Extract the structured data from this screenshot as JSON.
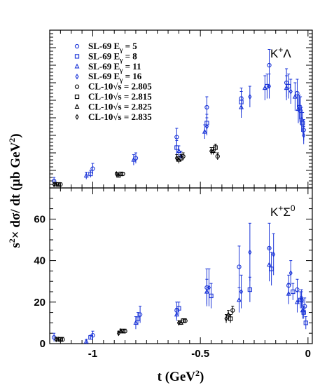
{
  "chart_data": [
    {
      "type": "scatter",
      "panel_label": "K⁺Λ",
      "ylim": [
        0,
        90
      ],
      "y_tick_labels_shown": false,
      "legend": [
        {
          "marker": "circle",
          "color": "#1a34d8",
          "text": "SL-69 E",
          "sub": "γ",
          "rest": " = 5"
        },
        {
          "marker": "square",
          "color": "#1a34d8",
          "text": "SL-69 E",
          "sub": "γ",
          "rest": " = 8"
        },
        {
          "marker": "triangle",
          "color": "#1a34d8",
          "text": "SL-69 E",
          "sub": "γ",
          "rest": " = 11"
        },
        {
          "marker": "diamond",
          "color": "#1a34d8",
          "text": "SL-69 E",
          "sub": "γ",
          "rest": " = 16"
        },
        {
          "marker": "circle",
          "color": "#000000",
          "text": "CL-10√s = 2.805"
        },
        {
          "marker": "square",
          "color": "#000000",
          "text": "CL-10√s = 2.815"
        },
        {
          "marker": "triangle",
          "color": "#000000",
          "text": "CL-10√s = 2.825"
        },
        {
          "marker": "diamond",
          "color": "#000000",
          "text": "CL-10√s = 2.835"
        }
      ],
      "series": [
        {
          "name": "SL-69 Eγ = 5",
          "marker": "circle",
          "color": "#1a34d8",
          "points": [
            [
              -1.18,
              4,
              2
            ],
            [
              -1.0,
              11,
              3
            ],
            [
              -0.8,
              17,
              3
            ],
            [
              -0.61,
              29,
              5
            ],
            [
              -0.47,
              46,
              6
            ],
            [
              -0.31,
              51,
              6
            ],
            [
              -0.18,
              70,
              9
            ],
            [
              -0.1,
              60,
              8
            ],
            [
              -0.05,
              54,
              8
            ],
            [
              -0.035,
              44,
              8
            ],
            [
              -0.02,
              33,
              6
            ]
          ]
        },
        {
          "name": "SL-69 Eγ = 8",
          "marker": "square",
          "color": "#1a34d8",
          "points": [
            [
              -1.01,
              8,
              2
            ],
            [
              -0.61,
              23,
              4
            ],
            [
              -0.47,
              37,
              5
            ],
            [
              -0.31,
              49,
              6
            ],
            [
              -0.19,
              58,
              7
            ],
            [
              -0.09,
              58,
              7
            ],
            [
              -0.04,
              46,
              7
            ],
            [
              -0.025,
              37,
              6
            ]
          ]
        },
        {
          "name": "SL-69 Eγ = 11",
          "marker": "triangle",
          "color": "#1a34d8",
          "points": [
            [
              -1.03,
              7,
              2
            ],
            [
              -0.81,
              16,
              3
            ],
            [
              -0.6,
              21,
              3
            ],
            [
              -0.48,
              32,
              4
            ],
            [
              -0.31,
              46,
              6
            ],
            [
              -0.2,
              57,
              7
            ],
            [
              -0.1,
              57,
              7
            ],
            [
              -0.06,
              52,
              8
            ],
            [
              -0.045,
              45,
              8
            ],
            [
              -0.03,
              39,
              7
            ]
          ]
        },
        {
          "name": "SL-69 Eγ = 16",
          "marker": "diamond",
          "color": "#1a34d8",
          "points": [
            [
              -0.59,
              18,
              3
            ],
            [
              -0.47,
              35,
              5
            ],
            [
              -0.27,
              52,
              6
            ],
            [
              -0.18,
              58,
              7
            ],
            [
              -0.08,
              55,
              7
            ],
            [
              -0.02,
              30,
              5
            ]
          ]
        },
        {
          "name": "CL-10√s = 2.805",
          "marker": "circle",
          "color": "#000000",
          "points": [
            [
              -1.15,
              2,
              1
            ],
            [
              -0.86,
              8,
              1
            ],
            [
              -0.58,
              18,
              2
            ],
            [
              -0.42,
              18,
              2
            ]
          ]
        },
        {
          "name": "CL-10√s = 2.815",
          "marker": "square",
          "color": "#000000",
          "points": [
            [
              -1.16,
              2,
              1
            ],
            [
              -0.87,
              8,
              1
            ],
            [
              -0.59,
              17,
              2
            ],
            [
              -0.43,
              23,
              2
            ]
          ]
        },
        {
          "name": "CL-10√s = 2.825",
          "marker": "triangle",
          "color": "#000000",
          "points": [
            [
              -1.17,
              2,
              1
            ],
            [
              -0.88,
              7,
              1
            ],
            [
              -0.6,
              16,
              2
            ],
            [
              -0.44,
              21,
              2
            ]
          ]
        },
        {
          "name": "CL-10√s = 2.835",
          "marker": "diamond",
          "color": "#000000",
          "points": [
            [
              -1.18,
              2,
              1
            ],
            [
              -0.89,
              8,
              1
            ],
            [
              -0.61,
              17,
              2
            ],
            [
              -0.45,
              21,
              2
            ]
          ]
        }
      ]
    },
    {
      "type": "scatter",
      "panel_label": "K⁺Σ⁰",
      "ylim": [
        0,
        75
      ],
      "y_tick_labels": [
        "0",
        "20",
        "40",
        "60"
      ],
      "y_ticks": [
        0,
        20,
        40,
        60
      ],
      "series": [
        {
          "name": "SL-69 Eγ = 5",
          "marker": "circle",
          "color": "#1a34d8",
          "points": [
            [
              -1.18,
              3,
              2
            ],
            [
              -1.0,
              4,
              2
            ],
            [
              -0.78,
              14,
              4
            ],
            [
              -0.61,
              16,
              4
            ],
            [
              -0.47,
              27,
              9
            ],
            [
              -0.32,
              37,
              10
            ],
            [
              -0.18,
              46,
              12
            ],
            [
              -0.09,
              28,
              5
            ],
            [
              -0.05,
              26,
              5
            ],
            [
              -0.03,
              21,
              4
            ],
            [
              -0.015,
              18,
              4
            ]
          ]
        },
        {
          "name": "SL-69 Eγ = 8",
          "marker": "square",
          "color": "#1a34d8",
          "points": [
            [
              -1.01,
              3,
              1
            ],
            [
              -0.79,
              12,
              3
            ],
            [
              -0.6,
              17,
              3
            ],
            [
              -0.45,
              23,
              6
            ],
            [
              -0.27,
              26,
              6
            ],
            [
              -0.17,
              36,
              8
            ],
            [
              -0.07,
              25,
              4
            ],
            [
              -0.035,
              21,
              4
            ],
            [
              -0.02,
              15,
              3
            ],
            [
              -0.01,
              10,
              3
            ]
          ]
        },
        {
          "name": "SL-69 Eγ = 11",
          "marker": "triangle",
          "color": "#1a34d8",
          "points": [
            [
              -1.03,
              1,
              1
            ],
            [
              -0.8,
              10,
              3
            ],
            [
              -0.61,
              14,
              3
            ],
            [
              -0.47,
              25,
              6
            ],
            [
              -0.32,
              21,
              6
            ],
            [
              -0.18,
              38,
              8
            ],
            [
              -0.09,
              24,
              5
            ],
            [
              -0.05,
              20,
              5
            ],
            [
              -0.025,
              16,
              4
            ]
          ]
        },
        {
          "name": "SL-69 Eγ = 16",
          "marker": "diamond",
          "color": "#1a34d8",
          "points": [
            [
              -0.46,
              27,
              9
            ],
            [
              -0.31,
              25,
              8
            ],
            [
              -0.27,
              44,
              14
            ],
            [
              -0.16,
              43,
              10
            ],
            [
              -0.08,
              34,
              6
            ],
            [
              -0.03,
              22,
              4
            ]
          ]
        },
        {
          "name": "CL-10√s = 2.805",
          "marker": "circle",
          "color": "#000000",
          "points": [
            [
              -1.14,
              2,
              1
            ],
            [
              -0.85,
              6,
              1
            ],
            [
              -0.57,
              11,
              1
            ],
            [
              -0.35,
              16,
              2
            ]
          ]
        },
        {
          "name": "CL-10√s = 2.815",
          "marker": "square",
          "color": "#000000",
          "points": [
            [
              -1.15,
              2,
              1
            ],
            [
              -0.86,
              6,
              1
            ],
            [
              -0.58,
              11,
              1
            ],
            [
              -0.36,
              12,
              2
            ]
          ]
        },
        {
          "name": "CL-10√s = 2.825",
          "marker": "triangle",
          "color": "#000000",
          "points": [
            [
              -1.16,
              2,
              1
            ],
            [
              -0.87,
              6,
              1
            ],
            [
              -0.59,
              10,
              1
            ],
            [
              -0.37,
              14,
              2
            ]
          ]
        },
        {
          "name": "CL-10√s = 2.835",
          "marker": "diamond",
          "color": "#000000",
          "points": [
            [
              -1.17,
              2,
              1
            ],
            [
              -0.88,
              5,
              1
            ],
            [
              -0.6,
              10,
              1
            ],
            [
              -0.38,
              12,
              2
            ]
          ]
        }
      ]
    }
  ],
  "shared_x": {
    "xlim": [
      -1.2,
      0.02
    ],
    "ticks": [
      -1,
      -0.5,
      0
    ],
    "tick_labels": [
      "-1",
      "-0.5",
      "0"
    ],
    "xlabel_main": "t (GeV",
    "xlabel_sup": "2",
    "xlabel_tail": ")"
  },
  "ylabel": {
    "part1": "s",
    "sup1": "2",
    "part2": "× dσ/ dt  (μb GeV",
    "sup2": "2",
    "part3": ")"
  }
}
